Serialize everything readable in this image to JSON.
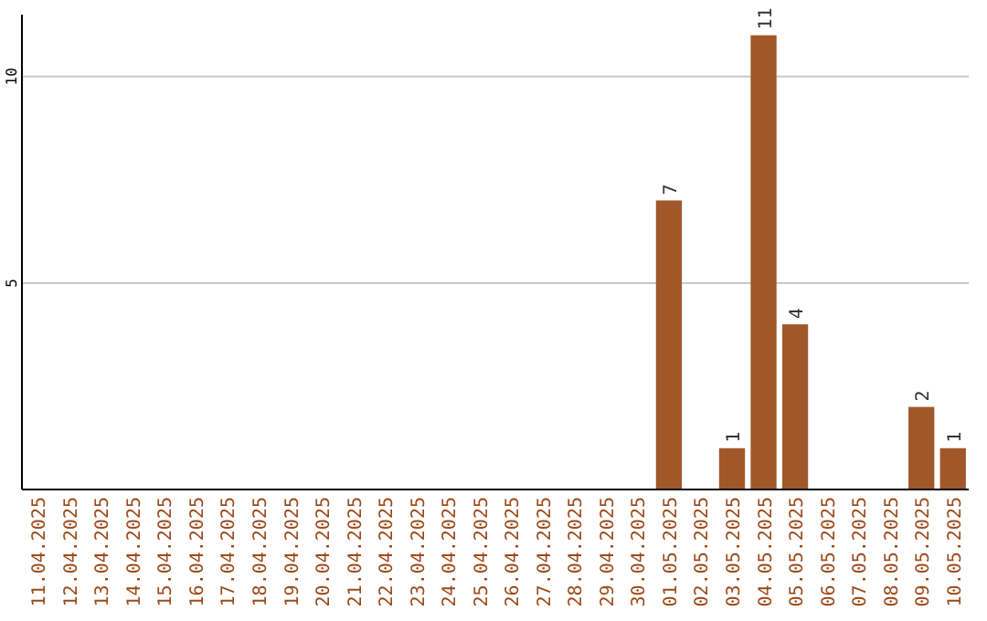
{
  "chart_data": {
    "type": "bar",
    "categories": [
      "11.04.2025",
      "12.04.2025",
      "13.04.2025",
      "14.04.2025",
      "15.04.2025",
      "16.04.2025",
      "17.04.2025",
      "18.04.2025",
      "19.04.2025",
      "20.04.2025",
      "21.04.2025",
      "22.04.2025",
      "23.04.2025",
      "24.04.2025",
      "25.04.2025",
      "26.04.2025",
      "27.04.2025",
      "28.04.2025",
      "29.04.2025",
      "30.04.2025",
      "01.05.2025",
      "02.05.2025",
      "03.05.2025",
      "04.05.2025",
      "05.05.2025",
      "06.05.2025",
      "07.05.2025",
      "08.05.2025",
      "09.05.2025",
      "10.05.2025"
    ],
    "values": [
      0,
      0,
      0,
      0,
      0,
      0,
      0,
      0,
      0,
      0,
      0,
      0,
      0,
      0,
      0,
      0,
      0,
      0,
      0,
      0,
      7,
      0,
      1,
      11,
      4,
      0,
      0,
      0,
      2,
      1
    ],
    "value_labels": [
      null,
      null,
      null,
      null,
      null,
      null,
      null,
      null,
      null,
      null,
      null,
      null,
      null,
      null,
      null,
      null,
      null,
      null,
      null,
      null,
      "7",
      null,
      "1",
      "11",
      "4",
      null,
      null,
      null,
      "2",
      "1"
    ],
    "color": "#a0582a",
    "ylim": [
      0,
      11.5
    ],
    "yticks": [
      5,
      10
    ],
    "grid": "y"
  }
}
